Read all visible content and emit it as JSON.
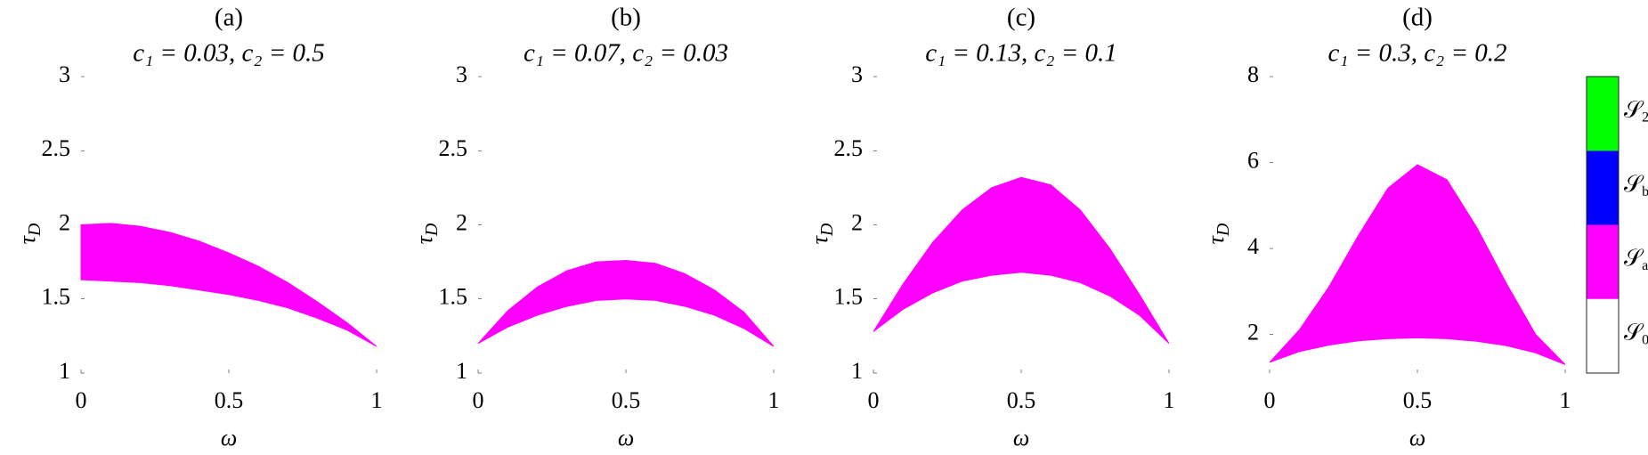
{
  "chart_data": [
    {
      "type": "area",
      "title": "(a)",
      "subtitle": "c₁ = 0.03, c₂ = 0.5",
      "x_label": "ω",
      "y_label": {
        "symbol": "τ",
        "subscript": "D"
      },
      "x": [
        0,
        0.1,
        0.2,
        0.3,
        0.4,
        0.5,
        0.6,
        0.7,
        0.8,
        0.9,
        1
      ],
      "upper": [
        2.0,
        2.01,
        1.99,
        1.95,
        1.89,
        1.81,
        1.72,
        1.61,
        1.48,
        1.34,
        1.18
      ],
      "lower": [
        1.63,
        1.62,
        1.61,
        1.59,
        1.56,
        1.53,
        1.49,
        1.44,
        1.37,
        1.29,
        1.18
      ],
      "color": "#ff00ff",
      "xlim": [
        0,
        1
      ],
      "xticks": [
        0,
        0.5,
        1
      ],
      "ylim": [
        1,
        3
      ],
      "yticks": [
        1,
        1.5,
        2,
        2.5,
        3
      ]
    },
    {
      "type": "area",
      "title": "(b)",
      "subtitle": "c₁ = 0.07, c₂ = 0.03",
      "x_label": "ω",
      "y_label": {
        "symbol": "τ",
        "subscript": "D"
      },
      "x": [
        0,
        0.1,
        0.2,
        0.3,
        0.4,
        0.5,
        0.6,
        0.7,
        0.8,
        0.9,
        1
      ],
      "upper": [
        1.2,
        1.42,
        1.58,
        1.69,
        1.75,
        1.76,
        1.74,
        1.67,
        1.56,
        1.41,
        1.18
      ],
      "lower": [
        1.2,
        1.31,
        1.39,
        1.45,
        1.49,
        1.5,
        1.49,
        1.45,
        1.39,
        1.3,
        1.18
      ],
      "color": "#ff00ff",
      "xlim": [
        0,
        1
      ],
      "xticks": [
        0,
        0.5,
        1
      ],
      "ylim": [
        1,
        3
      ],
      "yticks": [
        1,
        1.5,
        2,
        2.5,
        3
      ]
    },
    {
      "type": "area",
      "title": "(c)",
      "subtitle": "c₁ = 0.13, c₂ = 0.1",
      "x_label": "ω",
      "y_label": {
        "symbol": "τ",
        "subscript": "D"
      },
      "x": [
        0,
        0.1,
        0.2,
        0.3,
        0.4,
        0.5,
        0.6,
        0.7,
        0.8,
        0.9,
        1
      ],
      "upper": [
        1.28,
        1.6,
        1.88,
        2.1,
        2.25,
        2.32,
        2.27,
        2.1,
        1.84,
        1.53,
        1.2
      ],
      "lower": [
        1.28,
        1.43,
        1.54,
        1.62,
        1.66,
        1.68,
        1.66,
        1.61,
        1.52,
        1.39,
        1.2
      ],
      "color": "#ff00ff",
      "xlim": [
        0,
        1
      ],
      "xticks": [
        0,
        0.5,
        1
      ],
      "ylim": [
        1,
        3
      ],
      "yticks": [
        1,
        1.5,
        2,
        2.5,
        3
      ]
    },
    {
      "type": "area",
      "title": "(d)",
      "subtitle": "c₁ = 0.3, c₂ = 0.2",
      "x_label": "ω",
      "y_label": {
        "symbol": "τ",
        "subscript": "D"
      },
      "x": [
        0,
        0.1,
        0.2,
        0.3,
        0.4,
        0.5,
        0.6,
        0.7,
        0.8,
        0.9,
        1
      ],
      "upper": [
        1.35,
        2.1,
        3.1,
        4.3,
        5.4,
        5.95,
        5.6,
        4.5,
        3.2,
        2.0,
        1.3
      ],
      "lower": [
        1.35,
        1.6,
        1.75,
        1.85,
        1.9,
        1.92,
        1.9,
        1.84,
        1.74,
        1.57,
        1.3
      ],
      "color": "#ff00ff",
      "xlim": [
        0,
        1
      ],
      "xticks": [
        0,
        0.5,
        1
      ],
      "ylim": [
        1.1,
        8
      ],
      "yticks": [
        2,
        4,
        6,
        8
      ]
    }
  ],
  "colorbar": {
    "labels": [
      {
        "symbol": "𝒮",
        "subscript": "0"
      },
      {
        "symbol": "𝒮",
        "subscript": "a"
      },
      {
        "symbol": "𝒮",
        "subscript": "b"
      },
      {
        "symbol": "𝒮",
        "subscript": "2"
      }
    ],
    "colors": [
      "#ffffff",
      "#ff00ff",
      "#0000ff",
      "#00ff00"
    ]
  }
}
